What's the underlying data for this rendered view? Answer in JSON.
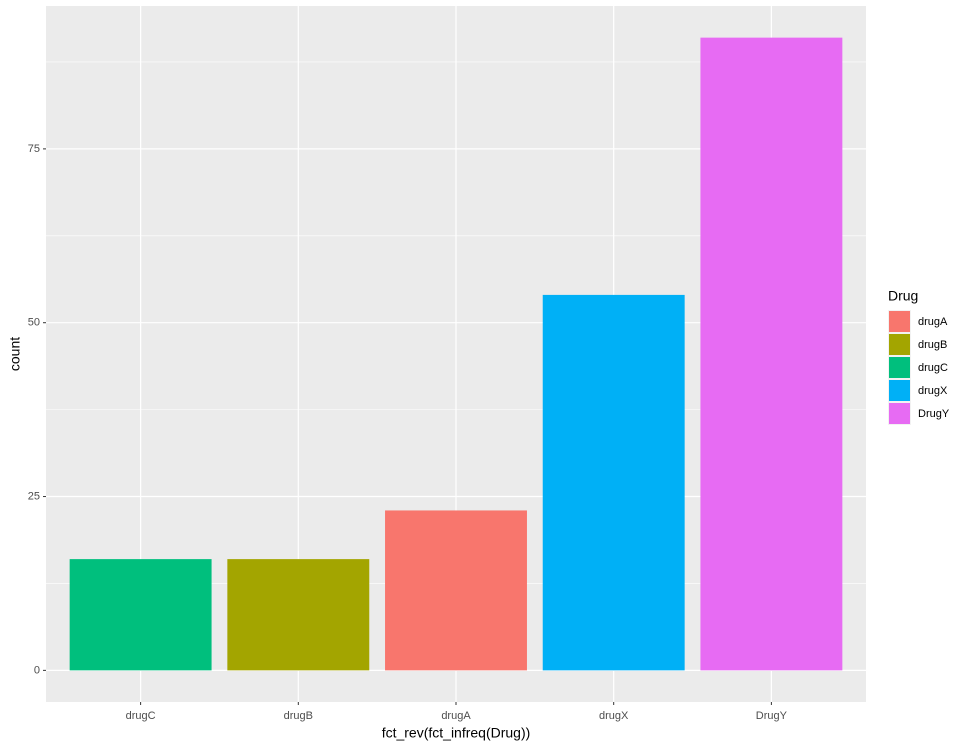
{
  "chart_data": {
    "type": "bar",
    "x_label": "fct_rev(fct_infreq(Drug))",
    "y_label": "count",
    "categories": [
      "drugC",
      "drugB",
      "drugA",
      "drugX",
      "DrugY"
    ],
    "values": [
      16,
      16,
      23,
      54,
      91
    ],
    "ylim": [
      -4.55,
      95.55
    ],
    "yticks": [
      0,
      25,
      50,
      75
    ],
    "minor_yticks": [
      12.5,
      37.5,
      62.5,
      87.5
    ],
    "grid": true,
    "legend": {
      "title": "Drug",
      "position": "right",
      "items": [
        {
          "name": "drugA",
          "color": "#F8766D"
        },
        {
          "name": "drugB",
          "color": "#A3A500"
        },
        {
          "name": "drugC",
          "color": "#00BF7D"
        },
        {
          "name": "drugX",
          "color": "#00B0F6"
        },
        {
          "name": "DrugY",
          "color": "#E76BF3"
        }
      ]
    }
  }
}
